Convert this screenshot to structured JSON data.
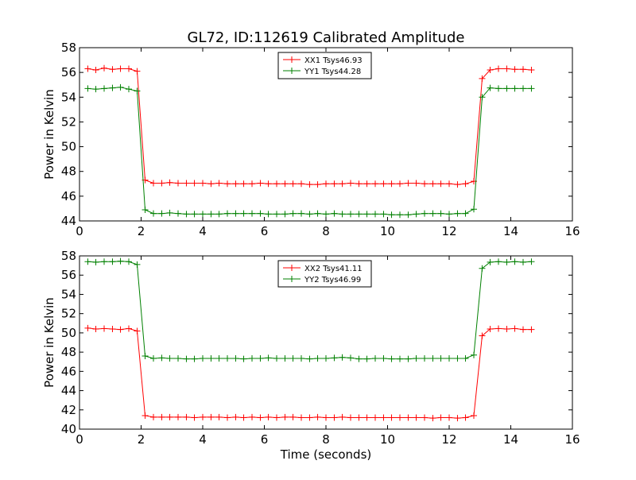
{
  "title": "GL72, ID:112619 Calibrated Amplitude",
  "chart_data": [
    {
      "type": "line",
      "title": "GL72, ID:112619 Calibrated Amplitude",
      "xlabel": "",
      "ylabel": "Power in Kelvin",
      "xlim": [
        0,
        16
      ],
      "ylim": [
        44,
        58
      ],
      "xticks": [
        0,
        2,
        4,
        6,
        8,
        10,
        12,
        14,
        16
      ],
      "yticks": [
        44,
        46,
        48,
        50,
        52,
        54,
        56,
        58
      ],
      "legend_position": "top-center",
      "grid": false,
      "x": [
        0.27,
        0.53,
        0.8,
        1.07,
        1.33,
        1.6,
        1.87,
        2.13,
        2.4,
        2.67,
        2.93,
        3.2,
        3.47,
        3.73,
        4.0,
        4.27,
        4.53,
        4.8,
        5.07,
        5.33,
        5.6,
        5.87,
        6.13,
        6.4,
        6.67,
        6.93,
        7.2,
        7.47,
        7.73,
        8.0,
        8.27,
        8.53,
        8.8,
        9.07,
        9.33,
        9.6,
        9.87,
        10.13,
        10.4,
        10.67,
        10.93,
        11.2,
        11.47,
        11.73,
        12.0,
        12.27,
        12.53,
        12.8,
        13.07,
        13.33,
        13.6,
        13.87,
        14.13,
        14.4,
        14.67
      ],
      "series": [
        {
          "name": "XX1 Tsys46.93",
          "color": "#ff0000",
          "values": [
            56.3,
            56.2,
            56.35,
            56.25,
            56.3,
            56.3,
            56.1,
            47.3,
            47.05,
            47.05,
            47.1,
            47.05,
            47.05,
            47.05,
            47.05,
            47.0,
            47.05,
            47.0,
            47.0,
            47.0,
            47.0,
            47.05,
            47.0,
            47.0,
            47.0,
            47.0,
            47.0,
            46.95,
            46.95,
            47.0,
            47.0,
            47.0,
            47.05,
            47.0,
            47.0,
            47.0,
            47.0,
            47.0,
            47.0,
            47.05,
            47.05,
            47.0,
            47.0,
            47.0,
            47.0,
            46.95,
            47.0,
            47.2,
            55.5,
            56.2,
            56.3,
            56.3,
            56.25,
            56.25,
            56.2
          ]
        },
        {
          "name": "YY1 Tsys44.28",
          "color": "#008000",
          "values": [
            54.7,
            54.65,
            54.7,
            54.75,
            54.8,
            54.65,
            54.5,
            44.9,
            44.6,
            44.6,
            44.65,
            44.6,
            44.55,
            44.55,
            44.55,
            44.55,
            44.55,
            44.6,
            44.6,
            44.6,
            44.6,
            44.6,
            44.55,
            44.55,
            44.55,
            44.6,
            44.6,
            44.55,
            44.6,
            44.55,
            44.6,
            44.55,
            44.55,
            44.55,
            44.55,
            44.55,
            44.55,
            44.5,
            44.5,
            44.5,
            44.55,
            44.6,
            44.6,
            44.6,
            44.55,
            44.6,
            44.6,
            44.95,
            54.0,
            54.75,
            54.7,
            54.7,
            54.7,
            54.7,
            54.7
          ]
        }
      ]
    },
    {
      "type": "line",
      "title": "",
      "xlabel": "Time (seconds)",
      "ylabel": "Power in Kelvin",
      "xlim": [
        0,
        16
      ],
      "ylim": [
        40,
        58
      ],
      "xticks": [
        0,
        2,
        4,
        6,
        8,
        10,
        12,
        14,
        16
      ],
      "yticks": [
        40,
        42,
        44,
        46,
        48,
        50,
        52,
        54,
        56,
        58
      ],
      "legend_position": "top-center",
      "grid": false,
      "x": [
        0.27,
        0.53,
        0.8,
        1.07,
        1.33,
        1.6,
        1.87,
        2.13,
        2.4,
        2.67,
        2.93,
        3.2,
        3.47,
        3.73,
        4.0,
        4.27,
        4.53,
        4.8,
        5.07,
        5.33,
        5.6,
        5.87,
        6.13,
        6.4,
        6.67,
        6.93,
        7.2,
        7.47,
        7.73,
        8.0,
        8.27,
        8.53,
        8.8,
        9.07,
        9.33,
        9.6,
        9.87,
        10.13,
        10.4,
        10.67,
        10.93,
        11.2,
        11.47,
        11.73,
        12.0,
        12.27,
        12.53,
        12.8,
        13.07,
        13.33,
        13.6,
        13.87,
        14.13,
        14.4,
        14.67
      ],
      "series": [
        {
          "name": "XX2 Tsys41.11",
          "color": "#ff0000",
          "values": [
            50.5,
            50.4,
            50.45,
            50.4,
            50.35,
            50.45,
            50.2,
            41.4,
            41.25,
            41.25,
            41.25,
            41.25,
            41.25,
            41.2,
            41.25,
            41.25,
            41.25,
            41.2,
            41.25,
            41.2,
            41.25,
            41.2,
            41.25,
            41.2,
            41.25,
            41.25,
            41.2,
            41.2,
            41.25,
            41.2,
            41.2,
            41.25,
            41.2,
            41.2,
            41.2,
            41.2,
            41.2,
            41.2,
            41.2,
            41.2,
            41.2,
            41.2,
            41.15,
            41.2,
            41.2,
            41.15,
            41.2,
            41.4,
            49.7,
            50.4,
            50.45,
            50.4,
            50.45,
            50.35,
            50.35
          ]
        },
        {
          "name": "YY2 Tsys46.99",
          "color": "#008000",
          "values": [
            57.4,
            57.35,
            57.4,
            57.4,
            57.45,
            57.4,
            57.1,
            47.6,
            47.35,
            47.4,
            47.35,
            47.35,
            47.3,
            47.3,
            47.35,
            47.35,
            47.35,
            47.35,
            47.35,
            47.3,
            47.35,
            47.35,
            47.4,
            47.35,
            47.35,
            47.35,
            47.35,
            47.3,
            47.35,
            47.35,
            47.4,
            47.45,
            47.4,
            47.3,
            47.3,
            47.35,
            47.35,
            47.3,
            47.3,
            47.3,
            47.35,
            47.35,
            47.35,
            47.35,
            47.35,
            47.35,
            47.35,
            47.7,
            56.7,
            57.35,
            57.4,
            57.35,
            57.4,
            57.35,
            57.4
          ]
        }
      ]
    }
  ]
}
